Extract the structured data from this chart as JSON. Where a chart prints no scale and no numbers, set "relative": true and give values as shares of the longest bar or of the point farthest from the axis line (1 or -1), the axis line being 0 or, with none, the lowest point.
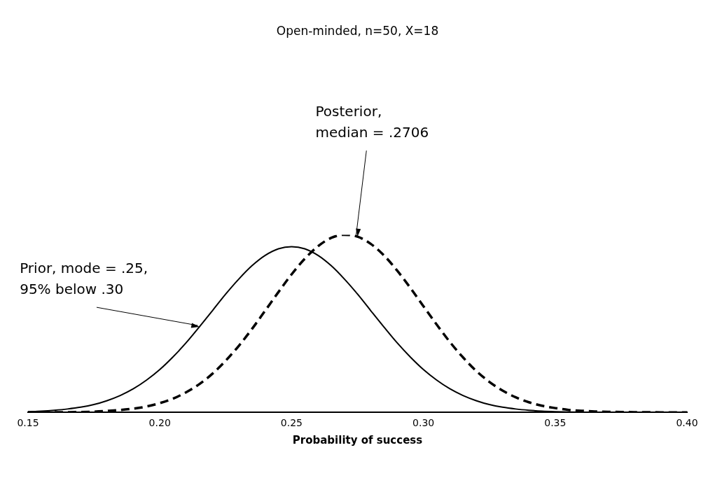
{
  "chart_data": {
    "type": "line",
    "title": "Open-minded, n=50, X=18",
    "xlabel": "Probability of success",
    "relative": true,
    "marker": "none",
    "xlim": [
      0.15,
      0.4
    ],
    "xticks": [
      0.15,
      {
        "value": 0.2,
        "label": "0.20"
      },
      0.25,
      {
        "value": 0.3,
        "label": "0.30"
      },
      0.35,
      {
        "value": 0.4,
        "label": "0.40"
      }
    ],
    "x": [
      0.15,
      0.155,
      0.16,
      0.165,
      0.17,
      0.175,
      0.18,
      0.185,
      0.19,
      0.195,
      0.2,
      0.205,
      0.21,
      0.215,
      0.22,
      0.225,
      0.23,
      0.235,
      0.24,
      0.245,
      0.25,
      0.255,
      0.26,
      0.265,
      0.27,
      0.275,
      0.28,
      0.285,
      0.29,
      0.295,
      0.3,
      0.305,
      0.31,
      0.315,
      0.32,
      0.325,
      0.33,
      0.335,
      0.34,
      0.345,
      0.35,
      0.355,
      0.36,
      0.365,
      0.37,
      0.375,
      0.38,
      0.385,
      0.39,
      0.395,
      0.4
    ],
    "series": [
      {
        "color": "#000000",
        "line_style": "solid",
        "values": [
          0.004,
          0.007,
          0.012,
          0.019,
          0.029,
          0.044,
          0.066,
          0.095,
          0.133,
          0.182,
          0.241,
          0.312,
          0.392,
          0.481,
          0.573,
          0.666,
          0.751,
          0.826,
          0.884,
          0.921,
          0.933,
          0.921,
          0.884,
          0.826,
          0.751,
          0.666,
          0.573,
          0.481,
          0.392,
          0.312,
          0.241,
          0.182,
          0.133,
          0.095,
          0.066,
          0.044,
          0.029,
          0.019,
          0.012,
          0.007,
          0.004,
          0.002,
          0.001,
          0,
          0,
          0,
          0,
          0,
          0,
          0,
          0
        ]
      },
      {
        "color": "#000000",
        "line_style": "dashed",
        "values": [
          0,
          0,
          0.001,
          0.001,
          0.002,
          0.004,
          0.008,
          0.013,
          0.021,
          0.033,
          0.052,
          0.077,
          0.113,
          0.159,
          0.218,
          0.291,
          0.375,
          0.47,
          0.573,
          0.677,
          0.777,
          0.865,
          0.935,
          0.982,
          1,
          0.989,
          0.949,
          0.884,
          0.799,
          0.702,
          0.598,
          0.495,
          0.397,
          0.31,
          0.234,
          0.172,
          0.123,
          0.085,
          0.057,
          0.037,
          0.024,
          0.014,
          0.009,
          0.005,
          0.003,
          0.002,
          0.001,
          0.001,
          0,
          0,
          0
        ]
      }
    ],
    "annotations": [
      {
        "text": "Prior, mode = .25,\n95% below .30",
        "x": 0.215,
        "y": 0.481
      },
      {
        "text": "Posterior,\nmedian = .2706",
        "x": 0.275,
        "y": 0.989
      }
    ]
  }
}
